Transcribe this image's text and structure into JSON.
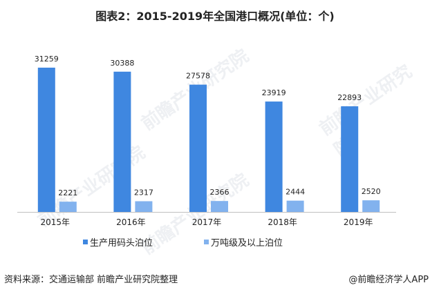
{
  "title": "图表2：2015-2019年全国港口概况(单位：个)",
  "chart_data": {
    "type": "bar",
    "title": "图表2：2015-2019年全国港口概况(单位：个)",
    "categories": [
      "2015年",
      "2016年",
      "2017年",
      "2018年",
      "2019年"
    ],
    "series": [
      {
        "name": "生产用码头泊位",
        "values": [
          31259,
          30388,
          27578,
          23919,
          22893
        ],
        "color": "#3F87E0"
      },
      {
        "name": "万吨级及以上泊位",
        "values": [
          2221,
          2317,
          2366,
          2444,
          2520
        ],
        "color": "#82B2EE"
      }
    ],
    "xlabel": "",
    "ylabel": "",
    "ylim": [
      0,
      31259
    ],
    "grid": false,
    "legend": "bottom"
  },
  "source": "资料来源：交通运输部 前瞻产业研究院整理",
  "brand": "@前瞻经济学人APP",
  "watermark": "前瞻产业研究院"
}
